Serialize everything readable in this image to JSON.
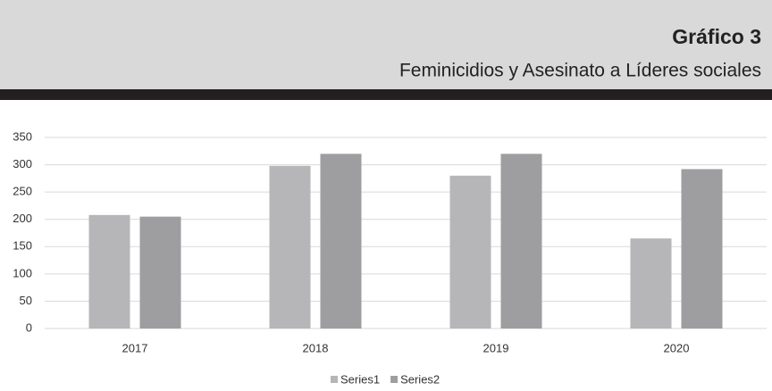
{
  "chart_data": {
    "type": "bar",
    "title": "Gráfico 3",
    "subtitle": "Feminicidios y Asesinato a Líderes sociales",
    "categories": [
      "2017",
      "2018",
      "2019",
      "2020"
    ],
    "series": [
      {
        "name": "Series1",
        "color": "#b6b6b8",
        "values": [
          208,
          298,
          280,
          165
        ]
      },
      {
        "name": "Series2",
        "color": "#9e9ea1",
        "values": [
          205,
          320,
          320,
          292
        ]
      }
    ],
    "ylim": [
      0,
      350
    ],
    "yticks": [
      0,
      50,
      100,
      150,
      200,
      250,
      300,
      350
    ],
    "grid": true,
    "legend": "bottom"
  }
}
